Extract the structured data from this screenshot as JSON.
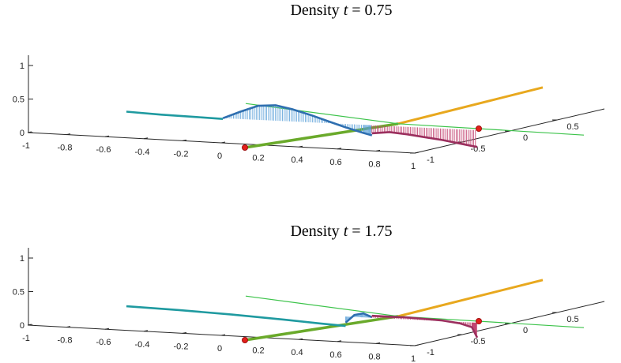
{
  "colors": {
    "left_curve": "#1f9aa0",
    "bump": "#2f6fb0",
    "stem_blue": "#5aa0d8",
    "right_curve": "#9b2f5e",
    "stem_right": "#c03c6a",
    "baseline": "#3cc34a",
    "green_edge": "#6aaa2b",
    "orange_edge": "#e8a81e",
    "endpoint": "#e3201b"
  },
  "chart_data": [
    {
      "type": "line",
      "title": {
        "prefix": "Density ",
        "var": "t",
        "eq": " = 0.75"
      },
      "x_ticks": [
        "-1",
        "-0.8",
        "-0.6",
        "-0.4",
        "-0.2",
        "0",
        "0.2",
        "0.4",
        "0.6",
        "0.8",
        "1"
      ],
      "y_ticks": [
        "-1",
        "-0.5",
        "0",
        "0.5"
      ],
      "z_ticks": [
        "0",
        "0.5",
        "1"
      ],
      "xlim": [
        -1,
        1
      ],
      "ylim": [
        -1,
        1
      ],
      "zlim": [
        0,
        1
      ],
      "series": [
        {
          "values_x": [
            -1.0,
            -0.8,
            -0.6,
            -0.45
          ],
          "values_z": [
            0.3,
            0.28,
            0.27,
            0.26
          ]
        },
        {
          "values_x": [
            -0.45,
            -0.35,
            -0.25,
            -0.15,
            -0.05,
            0.05,
            0.15,
            0.25,
            0.35,
            0.4
          ],
          "values_z": [
            0.27,
            0.38,
            0.48,
            0.5,
            0.45,
            0.38,
            0.3,
            0.22,
            0.15,
            0.12
          ]
        },
        {
          "values_x": [
            0.4,
            0.5,
            0.6,
            0.7,
            0.8,
            0.9,
            1.0
          ],
          "values_z": [
            0.15,
            0.18,
            0.16,
            0.13,
            0.1,
            0.06,
            0.02
          ]
        }
      ]
    },
    {
      "type": "line",
      "title": {
        "prefix": "Density ",
        "var": "t",
        "eq": " = 1.75"
      },
      "x_ticks": [
        "-1",
        "-0.8",
        "-0.6",
        "-0.4",
        "-0.2",
        "0",
        "0.2",
        "0.4",
        "0.6",
        "0.8",
        "1"
      ],
      "y_ticks": [
        "-1",
        "-0.5",
        "0",
        "0.5"
      ],
      "z_ticks": [
        "0",
        "0.5",
        "1"
      ],
      "xlim": [
        -1,
        1
      ],
      "ylim": [
        -1,
        1
      ],
      "zlim": [
        0,
        1
      ],
      "series": [
        {
          "values_x": [
            -1.0,
            -0.7,
            -0.4,
            -0.1,
            0.1,
            0.25
          ],
          "values_z": [
            0.27,
            0.25,
            0.22,
            0.18,
            0.15,
            0.13
          ]
        },
        {
          "values_x": [
            0.25,
            0.3,
            0.35,
            0.4
          ],
          "values_z": [
            0.18,
            0.3,
            0.33,
            0.28
          ]
        },
        {
          "values_x": [
            0.4,
            0.5,
            0.6,
            0.7,
            0.8,
            0.9,
            0.97,
            1.0
          ],
          "values_z": [
            0.3,
            0.3,
            0.3,
            0.29,
            0.28,
            0.25,
            0.2,
            0.05
          ]
        }
      ]
    }
  ]
}
